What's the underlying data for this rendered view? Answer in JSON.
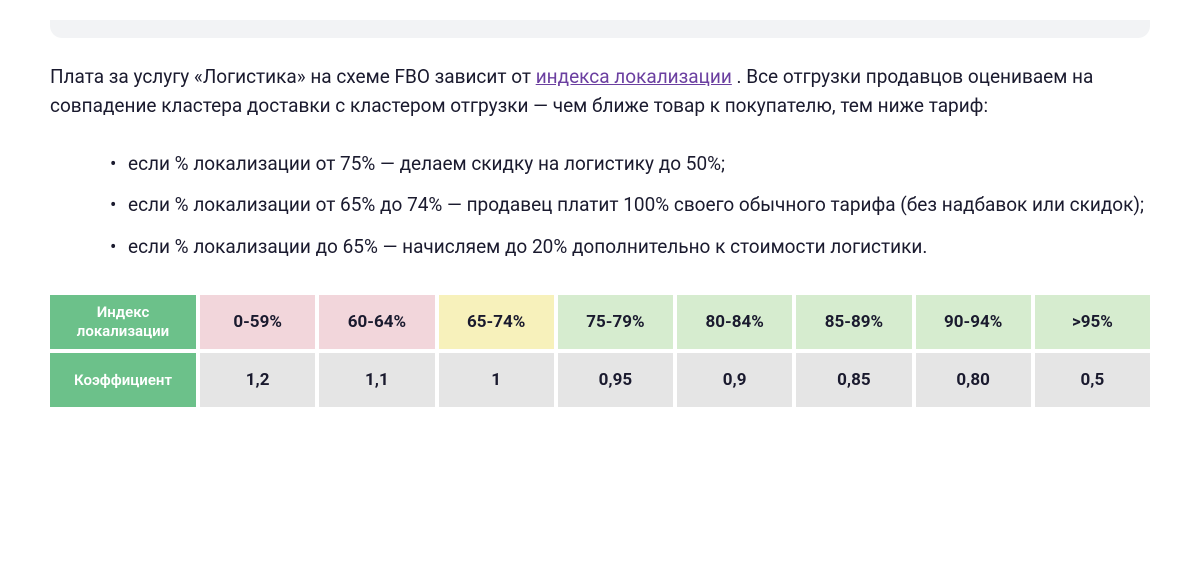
{
  "colors": {
    "pink": "#f2d6db",
    "yellow": "#f7f1bb",
    "green": "#d6eccf",
    "grey": "#e5e5e5",
    "label_green": "#6cc18a"
  },
  "paragraph": {
    "before_link": "Плата за услугу «Логистика» на схеме FBO зависит от ",
    "link": "индекса локализации",
    "after_link": ". Все отгрузки продавцов оцениваем на совпадение кластера доставки с кластером отгрузки — чем ближе товар к покупателю, тем ниже тариф:"
  },
  "bullets": [
    "если % локализации от 75% — делаем скидку на логистику до 50%;",
    "если % локализации от 65% до 74% — продавец платит 100% своего обычного тарифа (без надбавок или скидок);",
    "если % локализации до 65% — начисляем до 20% дополнительно к стоимости логистики."
  ],
  "table": {
    "row_labels": [
      "Индекс локализации",
      "Коэффициент"
    ],
    "columns": [
      {
        "range": "0-59%",
        "coef": "1,2",
        "color": "pink"
      },
      {
        "range": "60-64%",
        "coef": "1,1",
        "color": "pink"
      },
      {
        "range": "65-74%",
        "coef": "1",
        "color": "yellow"
      },
      {
        "range": "75-79%",
        "coef": "0,95",
        "color": "green"
      },
      {
        "range": "80-84%",
        "coef": "0,9",
        "color": "green"
      },
      {
        "range": "85-89%",
        "coef": "0,85",
        "color": "green"
      },
      {
        "range": "90-94%",
        "coef": "0,80",
        "color": "green"
      },
      {
        "range": ">95%",
        "coef": "0,5",
        "color": "green"
      }
    ]
  }
}
